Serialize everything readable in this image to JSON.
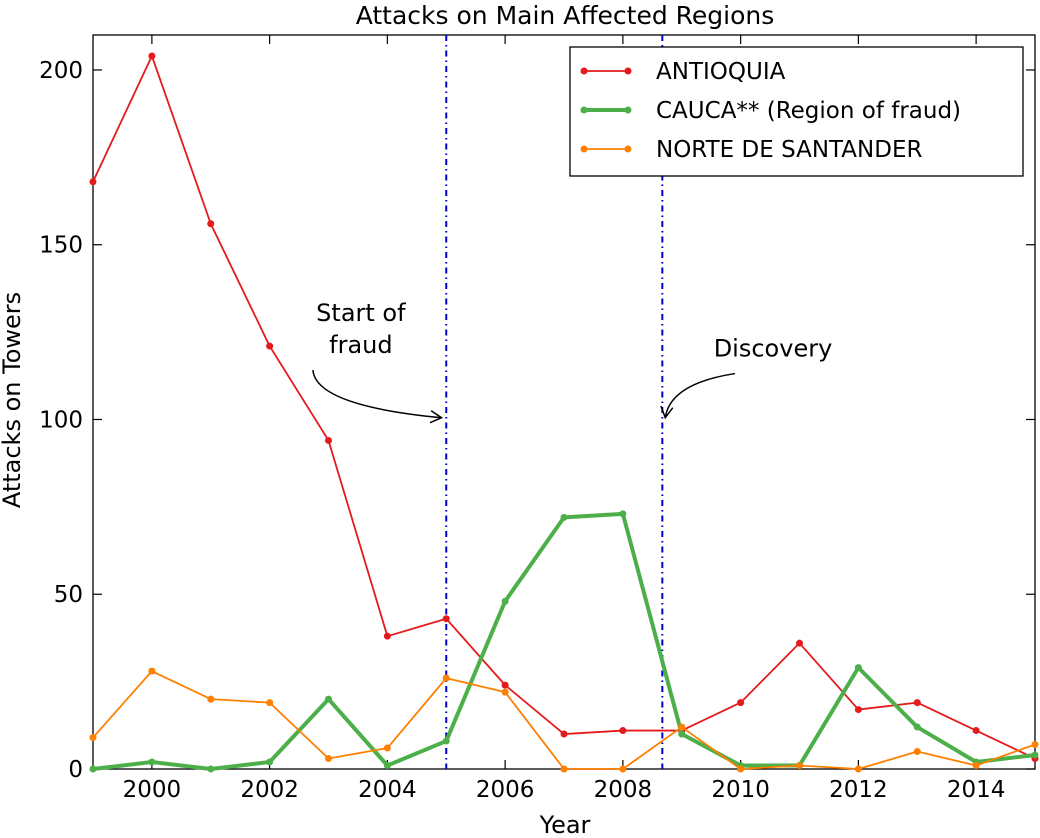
{
  "chart_data": {
    "type": "line",
    "title": "Attacks on Main Affected Regions",
    "xlabel": "Year",
    "ylabel": "Attacks on Towers",
    "xlim": [
      1999,
      2015
    ],
    "ylim": [
      0,
      210
    ],
    "xticks": [
      2000,
      2002,
      2004,
      2006,
      2008,
      2010,
      2012,
      2014
    ],
    "yticks": [
      0,
      50,
      100,
      150,
      200
    ],
    "legend_position": "top-right",
    "grid": false,
    "x": [
      1999,
      2000,
      2001,
      2002,
      2003,
      2004,
      2005,
      2006,
      2007,
      2008,
      2009,
      2010,
      2011,
      2012,
      2013,
      2014,
      2015
    ],
    "series": [
      {
        "name": "ANTIOQUIA",
        "color": "#e41a1c",
        "values": [
          168,
          204,
          156,
          121,
          94,
          38,
          43,
          24,
          10,
          11,
          11,
          19,
          36,
          17,
          19,
          11,
          3
        ]
      },
      {
        "name": "CAUCA** (Region of fraud)",
        "color": "#4daf4a",
        "values": [
          0,
          2,
          0,
          2,
          20,
          1,
          8,
          48,
          72,
          73,
          10,
          1,
          1,
          29,
          12,
          2,
          4
        ]
      },
      {
        "name": "NORTE DE SANTANDER",
        "color": "#ff7f00",
        "values": [
          9,
          28,
          20,
          19,
          3,
          6,
          26,
          22,
          0,
          0,
          12,
          0,
          1,
          0,
          5,
          1,
          7
        ]
      }
    ],
    "vlines": [
      {
        "x": 2005,
        "color": "#0000cc"
      },
      {
        "x": 2008.67,
        "color": "#0000cc"
      }
    ],
    "annotations": [
      {
        "lines": [
          "Start of",
          "fraud"
        ],
        "text_x": 2003.55,
        "text_y": 119,
        "arrow_x": 2004.92,
        "arrow_y": 100.5
      },
      {
        "lines": [
          "Discovery"
        ],
        "text_x": 2010.55,
        "text_y": 118,
        "arrow_x": 2008.72,
        "arrow_y": 100.5
      }
    ]
  }
}
